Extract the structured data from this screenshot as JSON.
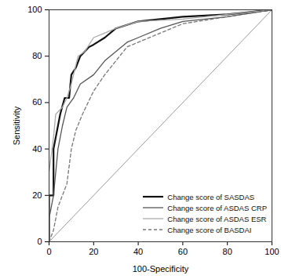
{
  "chart_data": {
    "type": "line",
    "x_label": "100-Specificity",
    "y_label": "Sensitivity",
    "xlim": [
      0,
      100
    ],
    "ylim": [
      0,
      100
    ],
    "xticks": [
      0,
      20,
      40,
      60,
      80,
      100
    ],
    "yticks": [
      0,
      20,
      40,
      60,
      80,
      100
    ],
    "legend": "lower right",
    "series": [
      {
        "name": "Change score of SASDAS",
        "color": "#111111",
        "line_style": "solid",
        "x": [
          0,
          0,
          2,
          2,
          4,
          5,
          7,
          9,
          10,
          12,
          14,
          16,
          18,
          20,
          25,
          30,
          40,
          60,
          80,
          100
        ],
        "values": [
          0,
          20,
          20,
          40,
          50,
          55,
          62,
          62,
          72,
          75,
          80,
          82,
          84,
          85,
          88,
          92,
          95,
          97,
          98,
          100
        ]
      },
      {
        "name": "Change score of ASDAS CRP",
        "color": "#555555",
        "line_style": "solid",
        "x": [
          0,
          0,
          2,
          4,
          6,
          8,
          11,
          14,
          20,
          25,
          30,
          35,
          40,
          50,
          60,
          80,
          100
        ],
        "values": [
          0,
          10,
          20,
          40,
          50,
          58,
          62,
          68,
          72,
          78,
          82,
          86,
          88,
          92,
          95,
          97,
          100
        ]
      },
      {
        "name": "Change score of ASDAS ESR",
        "color": "#aaaaaa",
        "line_style": "solid",
        "x": [
          0,
          0,
          2,
          3,
          6,
          8,
          10,
          13,
          16,
          20,
          25,
          30,
          40,
          60,
          80,
          100
        ],
        "values": [
          0,
          30,
          45,
          55,
          58,
          62,
          68,
          80,
          82,
          88,
          90,
          92,
          95,
          96,
          98,
          100
        ]
      },
      {
        "name": "Change score of BASDAI",
        "color": "#777777",
        "line_style": "dashed",
        "x": [
          0,
          2,
          4,
          8,
          10,
          12,
          15,
          20,
          25,
          30,
          35,
          40,
          50,
          60,
          80,
          100
        ],
        "values": [
          0,
          5,
          15,
          25,
          40,
          48,
          55,
          65,
          72,
          78,
          84,
          86,
          90,
          94,
          97,
          100
        ]
      }
    ]
  }
}
